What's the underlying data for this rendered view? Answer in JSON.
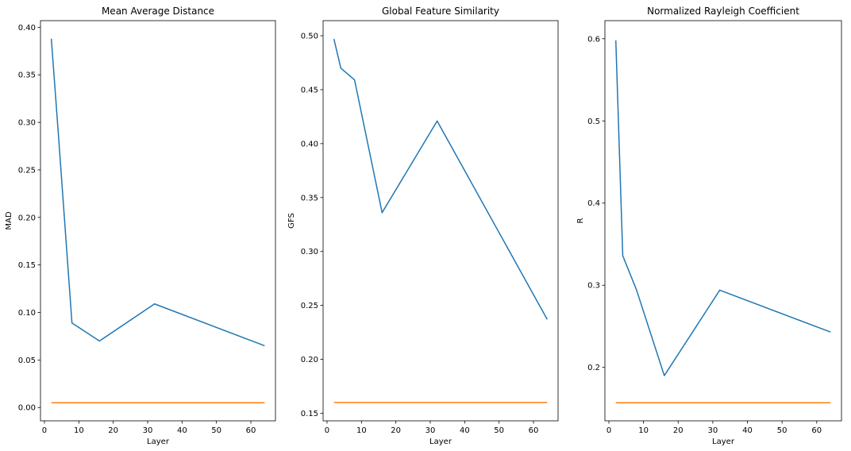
{
  "chart_data": [
    {
      "type": "line",
      "title": "Mean Average Distance",
      "xlabel": "Layer",
      "ylabel": "MAD",
      "xlim": [
        -1.15,
        67.15
      ],
      "ylim": [
        -0.014,
        0.407
      ],
      "xticks": [
        0,
        10,
        20,
        30,
        40,
        50,
        60
      ],
      "xticklabels": [
        "0",
        "10",
        "20",
        "30",
        "40",
        "50",
        "60"
      ],
      "yticks": [
        0.0,
        0.05,
        0.1,
        0.15,
        0.2,
        0.25,
        0.3,
        0.35,
        0.4
      ],
      "yticklabels": [
        "0.00",
        "0.05",
        "0.10",
        "0.15",
        "0.20",
        "0.25",
        "0.30",
        "0.35",
        "0.40"
      ],
      "grid": false,
      "series": [
        {
          "color": "#1f77b4",
          "x": [
            2,
            4,
            8,
            16,
            32,
            64
          ],
          "y": [
            0.388,
            0.29,
            0.089,
            0.07,
            0.109,
            0.065
          ]
        },
        {
          "color": "#ff7f0e",
          "x": [
            2,
            64
          ],
          "y": [
            0.005,
            0.005
          ]
        }
      ]
    },
    {
      "type": "line",
      "title": "Global Feature Similarity",
      "xlabel": "Layer",
      "ylabel": "GFS",
      "xlim": [
        -1.15,
        67.15
      ],
      "ylim": [
        0.143,
        0.514
      ],
      "xticks": [
        0,
        10,
        20,
        30,
        40,
        50,
        60
      ],
      "xticklabels": [
        "0",
        "10",
        "20",
        "30",
        "40",
        "50",
        "60"
      ],
      "yticks": [
        0.15,
        0.2,
        0.25,
        0.3,
        0.35,
        0.4,
        0.45,
        0.5
      ],
      "yticklabels": [
        "0.15",
        "0.20",
        "0.25",
        "0.30",
        "0.35",
        "0.40",
        "0.45",
        "0.50"
      ],
      "grid": false,
      "series": [
        {
          "color": "#1f77b4",
          "x": [
            2,
            4,
            8,
            16,
            32,
            64
          ],
          "y": [
            0.497,
            0.47,
            0.459,
            0.336,
            0.421,
            0.237
          ]
        },
        {
          "color": "#ff7f0e",
          "x": [
            2,
            64
          ],
          "y": [
            0.16,
            0.16
          ]
        }
      ]
    },
    {
      "type": "line",
      "title": "Normalized Rayleigh Coefficient",
      "xlabel": "Layer",
      "ylabel": "R",
      "xlim": [
        -1.15,
        67.15
      ],
      "ylim": [
        0.135,
        0.622
      ],
      "xticks": [
        0,
        10,
        20,
        30,
        40,
        50,
        60
      ],
      "xticklabels": [
        "0",
        "10",
        "20",
        "30",
        "40",
        "50",
        "60"
      ],
      "yticks": [
        0.2,
        0.3,
        0.4,
        0.5,
        0.6
      ],
      "yticklabels": [
        "0.2",
        "0.3",
        "0.4",
        "0.5",
        "0.6"
      ],
      "grid": false,
      "series": [
        {
          "color": "#1f77b4",
          "x": [
            2,
            4,
            8,
            16,
            32,
            64
          ],
          "y": [
            0.598,
            0.336,
            0.294,
            0.19,
            0.294,
            0.243
          ]
        },
        {
          "color": "#ff7f0e",
          "x": [
            2,
            64
          ],
          "y": [
            0.157,
            0.157
          ]
        }
      ]
    }
  ]
}
